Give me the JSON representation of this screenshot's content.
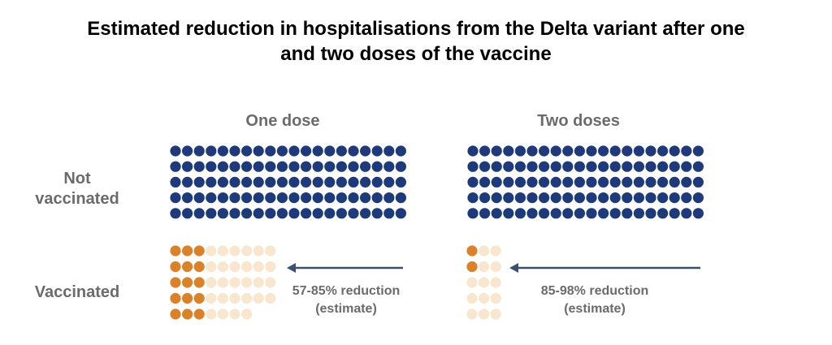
{
  "title_line1": "Estimated reduction in hospitalisations from the Delta variant after one",
  "title_line2": "and two doses of the vaccine",
  "chart_data": {
    "type": "isotype",
    "columns": [
      "One dose",
      "Two doses"
    ],
    "rows": [
      "Not vaccinated",
      "Vaccinated"
    ],
    "row_label_lines": {
      "not_vaccinated": [
        "Not",
        "vaccinated"
      ],
      "vaccinated": [
        "Vaccinated"
      ]
    },
    "not_vaccinated": {
      "dots_per_row": 20,
      "rows": 5,
      "total": 100
    },
    "panels": [
      {
        "name": "One dose",
        "vaccinated_hospitalised": 15,
        "vaccinated_avoided": 28,
        "reduction_range": [
          57,
          85
        ],
        "note_line1": "57-85% reduction",
        "note_line2": "(estimate)"
      },
      {
        "name": "Two doses",
        "vaccinated_hospitalised": 2,
        "vaccinated_avoided": 13,
        "reduction_range": [
          85,
          98
        ],
        "note_line1": "85-98% reduction",
        "note_line2": "(estimate)"
      }
    ],
    "colors": {
      "not_vaccinated": "#1f3a7a",
      "hospitalised": "#d9822b",
      "avoided": "#f8e6cf",
      "arrow": "#3e4f6b"
    }
  }
}
